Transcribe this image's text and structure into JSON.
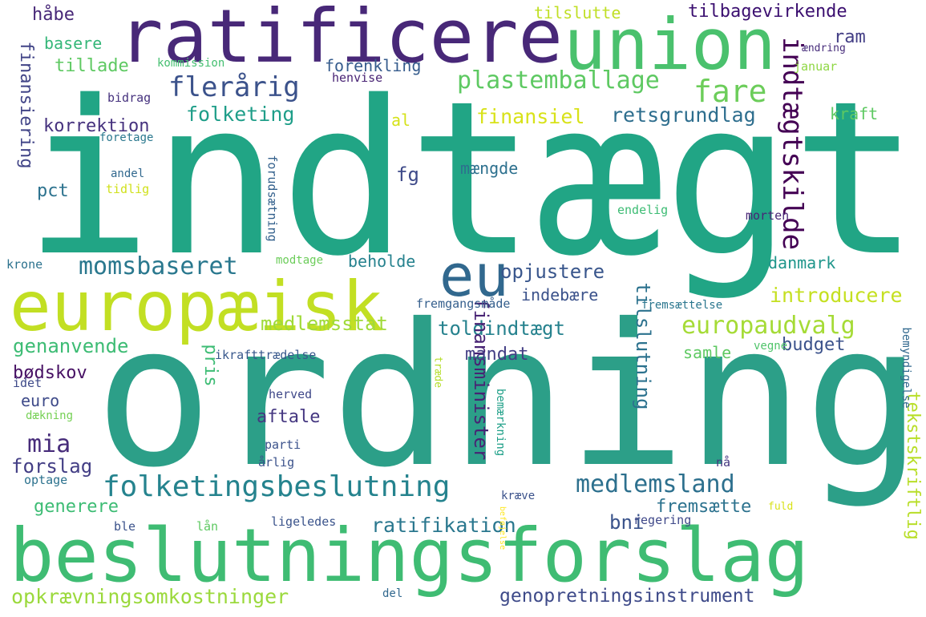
{
  "words": [
    {
      "text": "indtægt",
      "color": "#21a585"
    },
    {
      "text": "ordning",
      "color": "#2c9f88"
    },
    {
      "text": "beslutningsforslag",
      "color": "#3fbc73"
    },
    {
      "text": "ratificere",
      "color": "#482878"
    },
    {
      "text": "union",
      "color": "#4ac16d"
    },
    {
      "text": "europæisk",
      "color": "#c2df23"
    },
    {
      "text": "eu",
      "color": "#31688e"
    },
    {
      "text": "folketingsbeslutning",
      "color": "#25838e"
    },
    {
      "text": "medlemsland",
      "color": "#2d708e"
    },
    {
      "text": "opkrævningsomkostninger",
      "color": "#9bd93c"
    },
    {
      "text": "genopretningsinstrument",
      "color": "#3e4a89"
    },
    {
      "text": "plastemballage",
      "color": "#5ec962"
    },
    {
      "text": "flerårig",
      "color": "#3b528b"
    },
    {
      "text": "fare",
      "color": "#6ccd5a"
    },
    {
      "text": "momsbaseret",
      "color": "#2a788e"
    },
    {
      "text": "europaudvalg",
      "color": "#a5db36"
    },
    {
      "text": "indtægtskilde",
      "color": "#440154"
    },
    {
      "text": "tilbagevirkende",
      "color": "#3b0f70"
    },
    {
      "text": "folketing",
      "color": "#1f9e89"
    },
    {
      "text": "retsgrundlag",
      "color": "#2e6e8e"
    },
    {
      "text": "finansiel",
      "color": "#d8e219"
    },
    {
      "text": "opjustere",
      "color": "#39568c"
    },
    {
      "text": "introducere",
      "color": "#c5e021"
    },
    {
      "text": "toldindtægt",
      "color": "#26828e"
    },
    {
      "text": "ratifikation",
      "color": "#2a778e"
    },
    {
      "text": "mia",
      "color": "#472c7a"
    },
    {
      "text": "forslag",
      "color": "#433e85"
    },
    {
      "text": "korrektion",
      "color": "#46327e"
    },
    {
      "text": "finansiering",
      "color": "#414487"
    },
    {
      "text": "tilslutning",
      "color": "#2c728e"
    },
    {
      "text": "finansminister",
      "color": "#482374"
    },
    {
      "text": "tekstskriftlig",
      "color": "#b8de29"
    },
    {
      "text": "medlemsstat",
      "color": "#a0da39"
    },
    {
      "text": "genanvende",
      "color": "#3dbc74"
    },
    {
      "text": "mandat",
      "color": "#433e85"
    },
    {
      "text": "budget",
      "color": "#3b528b"
    },
    {
      "text": "bødskov",
      "color": "#471164"
    },
    {
      "text": "generere",
      "color": "#3dbc74"
    },
    {
      "text": "fremsætte",
      "color": "#2c728e"
    },
    {
      "text": "bni",
      "color": "#3a538b"
    },
    {
      "text": "pris",
      "color": "#3dbc74"
    },
    {
      "text": "aftale",
      "color": "#453781"
    },
    {
      "text": "euro",
      "color": "#3e4a89"
    },
    {
      "text": "danmark",
      "color": "#1f968b"
    },
    {
      "text": "samle",
      "color": "#5ec962"
    },
    {
      "text": "beholde",
      "color": "#26828e"
    },
    {
      "text": "indebære",
      "color": "#3b528b"
    },
    {
      "text": "forenkling",
      "color": "#365c8d"
    },
    {
      "text": "tillade",
      "color": "#5ec962"
    },
    {
      "text": "basere",
      "color": "#35b779"
    },
    {
      "text": "håbe",
      "color": "#482878"
    },
    {
      "text": "ram",
      "color": "#433e85"
    },
    {
      "text": "kraft",
      "color": "#5ec962"
    },
    {
      "text": "tilslutte",
      "color": "#c0df25"
    },
    {
      "text": "mængde",
      "color": "#2d708e"
    },
    {
      "text": "fg",
      "color": "#3e4a89"
    },
    {
      "text": "al",
      "color": "#d5e21a"
    },
    {
      "text": "pct",
      "color": "#2c728e"
    },
    {
      "text": "kommission",
      "color": "#44bf70"
    },
    {
      "text": "henvise",
      "color": "#482374"
    },
    {
      "text": "bidrag",
      "color": "#46327e"
    },
    {
      "text": "foretage",
      "color": "#2a788e"
    },
    {
      "text": "andel",
      "color": "#31688e"
    },
    {
      "text": "tidlig",
      "color": "#d0e11c"
    },
    {
      "text": "forudsætning",
      "color": "#34618d"
    },
    {
      "text": "krone",
      "color": "#2c728e"
    },
    {
      "text": "modtage",
      "color": "#6ccd5a"
    },
    {
      "text": "fremgangsmåde",
      "color": "#355f8d"
    },
    {
      "text": "endelig",
      "color": "#3dbc74"
    },
    {
      "text": "morten",
      "color": "#482576"
    },
    {
      "text": "ændring",
      "color": "#472d7b"
    },
    {
      "text": "januar",
      "color": "#8fd744"
    },
    {
      "text": "fremsættelse",
      "color": "#2a768e"
    },
    {
      "text": "ikrafttrædelse",
      "color": "#38588c"
    },
    {
      "text": "vegne",
      "color": "#50c46a"
    },
    {
      "text": "idet",
      "color": "#3e4a89"
    },
    {
      "text": "herved",
      "color": "#3f4889"
    },
    {
      "text": "dækning",
      "color": "#75d054"
    },
    {
      "text": "træde",
      "color": "#b5de2b"
    },
    {
      "text": "bemærkning",
      "color": "#1fa088"
    },
    {
      "text": "beføjelse",
      "color": "#fde725"
    },
    {
      "text": "bemyndigelse",
      "color": "#31688e"
    },
    {
      "text": "parti",
      "color": "#3b528b"
    },
    {
      "text": "årlig",
      "color": "#3b528b"
    },
    {
      "text": "optage",
      "color": "#2c728e"
    },
    {
      "text": "nå",
      "color": "#453781"
    },
    {
      "text": "kræve",
      "color": "#3b528b"
    },
    {
      "text": "fuld",
      "color": "#d8e219"
    },
    {
      "text": "ble",
      "color": "#3b528b"
    },
    {
      "text": "lån",
      "color": "#5ec962"
    },
    {
      "text": "ligeledes",
      "color": "#3a538b"
    },
    {
      "text": "regering",
      "color": "#3f4889"
    },
    {
      "text": "del",
      "color": "#31688e"
    }
  ]
}
